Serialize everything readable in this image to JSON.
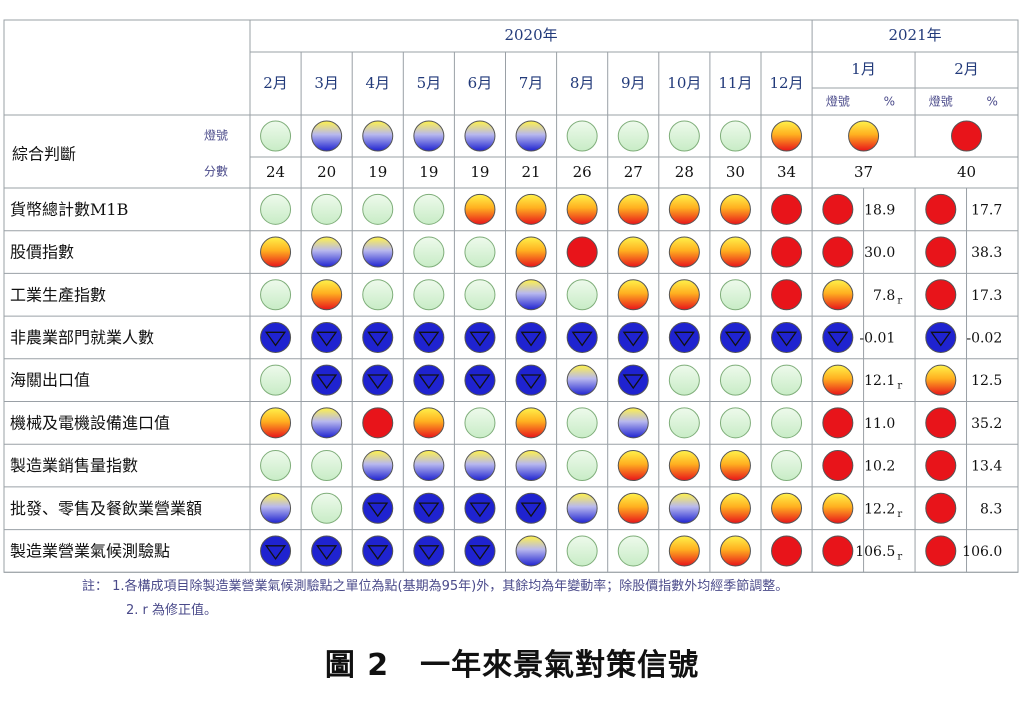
{
  "chart_data": {
    "type": "table",
    "year_labels": [
      "2020年",
      "2021年"
    ],
    "months_2020": [
      "2月",
      "3月",
      "4月",
      "5月",
      "6月",
      "7月",
      "8月",
      "9月",
      "10月",
      "11月",
      "12月"
    ],
    "months_2021": [
      "1月",
      "2月"
    ],
    "sub_headers": {
      "signal": "燈號",
      "percent": "%"
    },
    "composite": {
      "label": "綜合判斷",
      "signal_label": "燈號",
      "score_label": "分數",
      "signals": [
        "G",
        "YB",
        "YB",
        "YB",
        "YB",
        "YB",
        "G",
        "G",
        "G",
        "G",
        "YR",
        "YR",
        "R"
      ],
      "scores": [
        "24",
        "20",
        "19",
        "19",
        "19",
        "21",
        "26",
        "27",
        "28",
        "30",
        "34",
        "37",
        "40"
      ]
    },
    "signal_legend": {
      "R": "#e8141a",
      "YR": "#ff8a1a",
      "G": "#d8f2d6",
      "YB": "#f2e45a",
      "B": "#1f23d0"
    },
    "rows": [
      {
        "label": "貨幣總計數M1B",
        "signals": [
          "G",
          "G",
          "G",
          "G",
          "YR",
          "YR",
          "YR",
          "YR",
          "YR",
          "YR",
          "R",
          "R",
          "R"
        ],
        "pct": [
          "18.9",
          "17.7"
        ],
        "rev": [
          false,
          false
        ]
      },
      {
        "label": "股價指數",
        "signals": [
          "YR",
          "YB",
          "YB",
          "G",
          "G",
          "YR",
          "R",
          "YR",
          "YR",
          "YR",
          "R",
          "R",
          "R"
        ],
        "pct": [
          "30.0",
          "38.3"
        ],
        "rev": [
          false,
          false
        ]
      },
      {
        "label": "工業生產指數",
        "signals": [
          "G",
          "YR",
          "G",
          "G",
          "G",
          "YB",
          "G",
          "YR",
          "YR",
          "G",
          "R",
          "YR",
          "R"
        ],
        "pct": [
          "7.8",
          "17.3"
        ],
        "rev": [
          true,
          false
        ]
      },
      {
        "label": "非農業部門就業人數",
        "signals": [
          "B",
          "B",
          "B",
          "B",
          "B",
          "B",
          "B",
          "B",
          "B",
          "B",
          "B",
          "B",
          "B"
        ],
        "pct": [
          "-0.01",
          "-0.02"
        ],
        "rev": [
          false,
          false
        ]
      },
      {
        "label": "海關出口值",
        "signals": [
          "G",
          "B",
          "B",
          "B",
          "B",
          "B",
          "YB",
          "B",
          "G",
          "G",
          "G",
          "YR",
          "YR"
        ],
        "pct": [
          "12.1",
          "12.5"
        ],
        "rev": [
          true,
          false
        ]
      },
      {
        "label": "機械及電機設備進口值",
        "signals": [
          "YR",
          "YB",
          "R",
          "YR",
          "G",
          "YR",
          "G",
          "YB",
          "G",
          "G",
          "G",
          "R",
          "R"
        ],
        "pct": [
          "11.0",
          "35.2"
        ],
        "rev": [
          false,
          false
        ]
      },
      {
        "label": "製造業銷售量指數",
        "signals": [
          "G",
          "G",
          "YB",
          "YB",
          "YB",
          "YB",
          "G",
          "YR",
          "YR",
          "YR",
          "G",
          "R",
          "R"
        ],
        "pct": [
          "10.2",
          "13.4"
        ],
        "rev": [
          false,
          false
        ]
      },
      {
        "label": "批發、零售及餐飲業營業額",
        "signals": [
          "YB",
          "G",
          "B",
          "B",
          "B",
          "B",
          "YB",
          "YR",
          "YB",
          "YR",
          "YR",
          "YR",
          "R"
        ],
        "pct": [
          "12.2",
          "8.3"
        ],
        "rev": [
          true,
          false
        ]
      },
      {
        "label": "製造業營業氣候測驗點",
        "signals": [
          "B",
          "B",
          "B",
          "B",
          "B",
          "YB",
          "G",
          "G",
          "YR",
          "YR",
          "R",
          "R",
          "R"
        ],
        "pct": [
          "106.5",
          "106.0"
        ],
        "rev": [
          true,
          false
        ]
      }
    ],
    "revised_mark": "r",
    "notes": [
      "註： 1.各構成項目除製造業營業氣候測驗點之單位為點(基期為95年)外，其餘均為年變動率；除股價指數外均經季節調整。",
      "2. r 為修正值。"
    ],
    "caption": "圖 2　一年來景氣對策信號"
  }
}
